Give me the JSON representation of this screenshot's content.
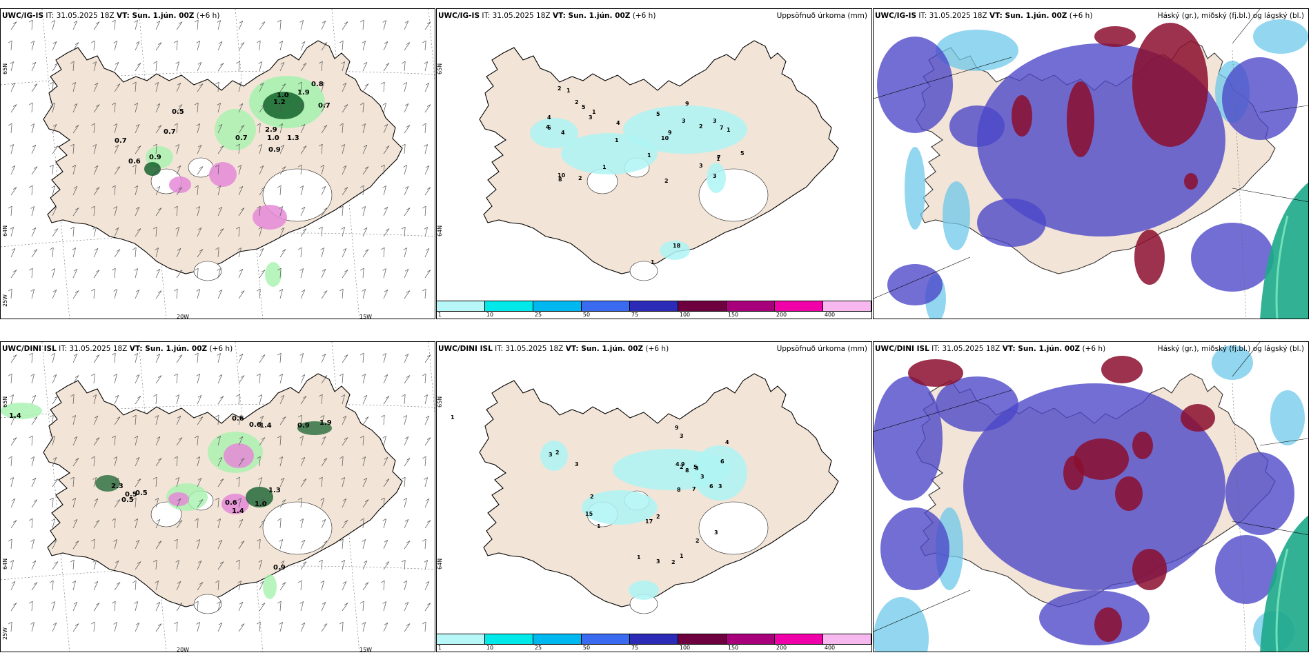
{
  "colors": {
    "land": "#f2e4d6",
    "coast": "#000000",
    "rain_light": "#a6f2ae",
    "rain_dark": "#0a5a24",
    "snow": "#e58ad8",
    "precip": "#aef4f4",
    "high_cloud": "#8b0e2e",
    "mid_cloud": "#4a45c8",
    "low_cloud": "#6ec8ea",
    "sea_green": "#1da88a"
  },
  "colorbar": {
    "colors": [
      "#b8f7f7",
      "#00e8e8",
      "#00b8f0",
      "#3a6af0",
      "#2b2bb8",
      "#6e0040",
      "#a8007a",
      "#f000a8",
      "#f7b8f0"
    ],
    "labels": [
      "1",
      "10",
      "25",
      "50",
      "75",
      "100",
      "150",
      "200",
      "400"
    ]
  },
  "rows": [
    {
      "model": "UWC/IG-IS",
      "panels": {
        "wind": {
          "title_model": "UWC/IG-IS",
          "title_it": "IT: 31.05.2025 18Z",
          "title_vt": "VT: Sun. 1.jún. 00Z",
          "title_step": "(+6 h)",
          "lon_labels": [
            "20W",
            "15W"
          ],
          "lat_labels": [
            "65N",
            "64N",
            "25W"
          ],
          "values": [
            "0.8",
            "1.0",
            "1.9",
            "1.2",
            "0.7",
            "0.5",
            "0.7",
            "0.7",
            "0.7",
            "0.6",
            "0.9",
            "1.3",
            "0.9",
            "2.9",
            "1.0"
          ]
        },
        "precip": {
          "title_model": "UWC/IG-IS",
          "title_it": "IT: 31.05.2025 18Z",
          "title_vt": "VT: Sun. 1.jún. 00Z",
          "title_step": "(+6 h)",
          "right_title": "Uppsöfnuð úrkoma (mm)",
          "lat_labels": [
            "65N",
            "64N"
          ],
          "values": [
            "2",
            "1",
            "2",
            "1",
            "4",
            "4",
            "5",
            "3",
            "4",
            "10",
            "9",
            "3",
            "9",
            "3",
            "7",
            "2",
            "5",
            "1",
            "18",
            "1",
            "1",
            "7",
            "3",
            "2",
            "5",
            "3",
            "1",
            "10",
            "8",
            "2",
            "1",
            "1",
            "6",
            "4"
          ]
        },
        "cloud": {
          "title_model": "UWC/IG-IS",
          "title_it": "IT: 31.05.2025 18Z",
          "title_vt": "VT: Sun. 1.jún. 00Z",
          "title_step": "(+6 h)",
          "right_title": "Háský (gr.), miðský (fj.bl.) og lágský (bl.)"
        }
      }
    },
    {
      "model": "UWC/DINI ISL",
      "panels": {
        "wind": {
          "title_model": "UWC/DINI ISL",
          "title_it": "IT: 31.05.2025 18Z",
          "title_vt": "VT: Sun. 1.jún. 00Z",
          "title_step": "(+6 h)",
          "lon_labels": [
            "20W",
            "15W"
          ],
          "lat_labels": [
            "65N",
            "64N",
            "25W"
          ],
          "values": [
            "1.4",
            "0.6",
            "0.6",
            "1.4",
            "0.9",
            "1.9",
            "0.5",
            "0.5",
            "1.3",
            "2.3",
            "0.6",
            "0.9",
            "0.5",
            "1.4",
            "1.0"
          ]
        },
        "precip": {
          "title_model": "UWC/DINI ISL",
          "title_it": "IT: 31.05.2025 18Z",
          "title_vt": "VT: Sun. 1.jún. 00Z",
          "title_step": "(+6 h)",
          "right_title": "Uppsöfnuð úrkoma (mm)",
          "lat_labels": [
            "65N",
            "64N"
          ],
          "values": [
            "1",
            "9",
            "3",
            "2",
            "3",
            "4",
            "6",
            "2",
            "9",
            "4",
            "5",
            "7",
            "8",
            "3",
            "3",
            "6",
            "3",
            "8",
            "17",
            "15",
            "2",
            "3",
            "2",
            "1",
            "2",
            "3",
            "1",
            "1",
            "2",
            "3"
          ]
        },
        "cloud": {
          "title_model": "UWC/DINI ISL",
          "title_it": "IT: 31.05.2025 18Z",
          "title_vt": "VT: Sun. 1.jún. 00Z",
          "title_step": "(+6 h)",
          "right_title": "Háský (gr.), miðský (fj.bl.) og lágský (bl.)"
        }
      }
    }
  ]
}
